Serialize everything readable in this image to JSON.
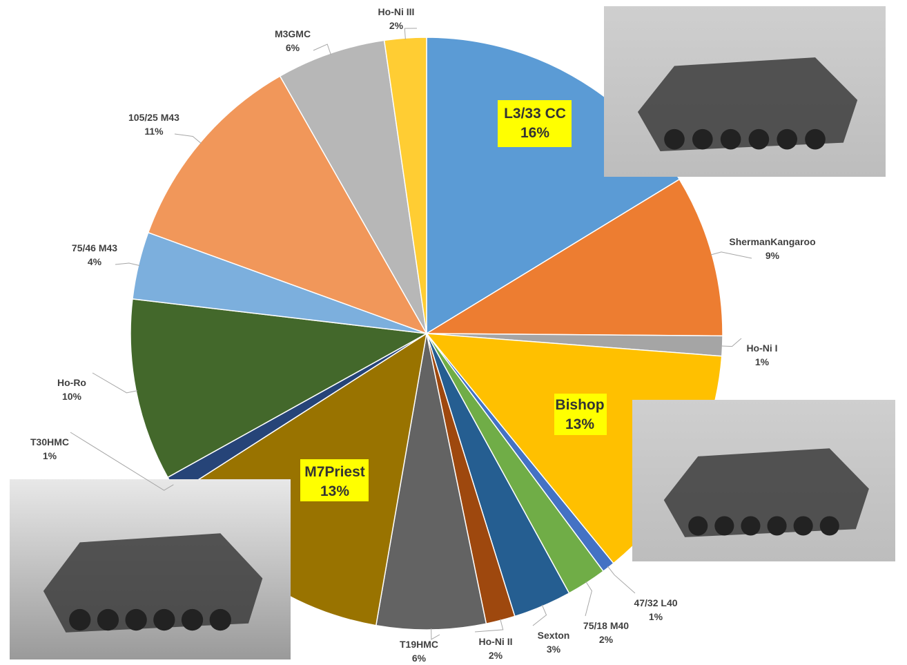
{
  "chart_data": {
    "type": "pie",
    "start": "12 o'clock, clockwise",
    "title": "",
    "slices": [
      {
        "label": "L3/33 CC",
        "pct_label": "16%",
        "value": 16.4,
        "color": "#5B9BD5",
        "highlight": true
      },
      {
        "label": "ShermanKangaroo",
        "pct_label": "9%",
        "value": 8.9,
        "color": "#ED7D31"
      },
      {
        "label": "Ho-Ni I",
        "pct_label": "1%",
        "value": 1.1,
        "color": "#A5A5A5"
      },
      {
        "label": "Bishop",
        "pct_label": "13%",
        "value": 13.0,
        "color": "#FFC000",
        "highlight": true
      },
      {
        "label": "47/32 L40",
        "pct_label": "1%",
        "value": 0.7,
        "color": "#4472C4"
      },
      {
        "label": "75/18 M40",
        "pct_label": "2%",
        "value": 2.2,
        "color": "#70AD47"
      },
      {
        "label": "Sexton",
        "pct_label": "3%",
        "value": 3.2,
        "color": "#255E91"
      },
      {
        "label": "Ho-Ni II",
        "pct_label": "2%",
        "value": 1.6,
        "color": "#9E480E"
      },
      {
        "label": "T19HMC",
        "pct_label": "6%",
        "value": 6.0,
        "color": "#636363"
      },
      {
        "label": "M7Priest",
        "pct_label": "13%",
        "value": 13.3,
        "color": "#997300",
        "highlight": true
      },
      {
        "label": "T30HMC",
        "pct_label": "1%",
        "value": 1.0,
        "color": "#264478"
      },
      {
        "label": "Ho-Ro",
        "pct_label": "10%",
        "value": 10.0,
        "color": "#43682B"
      },
      {
        "label": "75/46 M43",
        "pct_label": "4%",
        "value": 3.7,
        "color": "#7CAFDD"
      },
      {
        "label": "105/25 M43",
        "pct_label": "11%",
        "value": 11.3,
        "color": "#F1975A"
      },
      {
        "label": "M3GMC",
        "pct_label": "6%",
        "value": 6.0,
        "color": "#B7B7B7"
      },
      {
        "label": "Ho-Ni III",
        "pct_label": "2%",
        "value": 2.3,
        "color": "#FFCD33"
      }
    ],
    "highlight_color": "#FFFF00",
    "legend": "none (data labels with leader lines)"
  },
  "photos": [
    {
      "subject": "L3/33 CC photo"
    },
    {
      "subject": "Bishop photo"
    },
    {
      "subject": "M7Priest photo"
    }
  ]
}
